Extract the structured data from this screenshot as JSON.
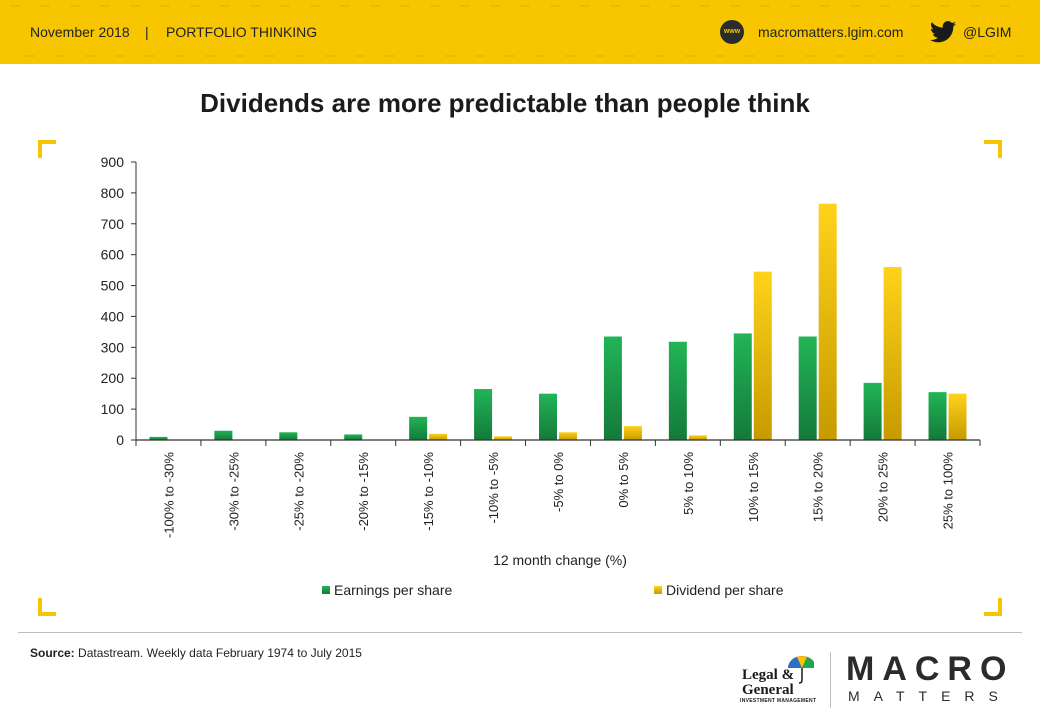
{
  "header": {
    "date": "November 2018",
    "separator": "|",
    "section": "PORTFOLIO THINKING",
    "www_icon": "www",
    "website": "macromatters.lgim.com",
    "twitter_icon": "twitter-icon",
    "twitter_handle": "@LGIM"
  },
  "colors": {
    "banner": "#f7c600",
    "earnings": "#1fa84f",
    "dividend": "#f2c200"
  },
  "chart_data": {
    "type": "bar",
    "title": "Dividends are more predictable than people think",
    "xlabel": "12 month change (%)",
    "ylabel": "",
    "ylim": [
      0,
      900
    ],
    "yticks": [
      "0",
      "100",
      "200",
      "300",
      "400",
      "500",
      "600",
      "700",
      "800",
      "900"
    ],
    "categories": [
      "-100% to -30%",
      "-30% to -25%",
      "-25% to -20%",
      "-20% to -15%",
      "-15% to -10%",
      "-10% to -5%",
      "-5% to 0%",
      "0% to 5%",
      "5% to 10%",
      "10% to 15%",
      "15% to 20%",
      "20% to 25%",
      "25% to 100%"
    ],
    "series": [
      {
        "name": "Earnings per share",
        "color": "#1fa84f",
        "values": [
          10,
          30,
          25,
          18,
          75,
          165,
          150,
          335,
          318,
          345,
          335,
          185,
          155
        ]
      },
      {
        "name": "Dividend per share",
        "color": "#f2c200",
        "values": [
          0,
          0,
          0,
          0,
          20,
          12,
          25,
          45,
          15,
          545,
          765,
          560,
          150
        ]
      }
    ],
    "grid": false,
    "legend": "bottom"
  },
  "footer": {
    "source_label": "Source:",
    "source_text": " Datastream. Weekly data February 1974 to July 2015",
    "lg_line1": "Legal &",
    "lg_line2": "General",
    "lg_sub": "INVESTMENT MANAGEMENT",
    "macro": "MACRO",
    "matters": "MATTERS"
  }
}
